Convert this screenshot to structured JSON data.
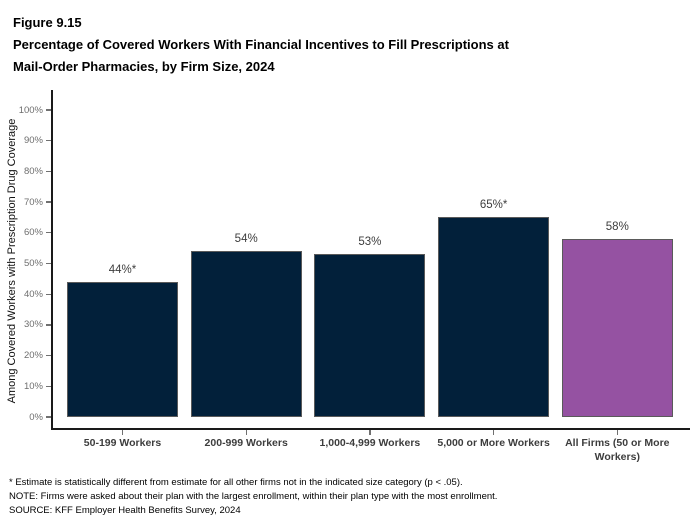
{
  "figure": {
    "label": "Figure 9.15",
    "title_lines": [
      "Percentage of Covered Workers With Financial Incentives to Fill Prescriptions at",
      "Mail-Order Pharmacies, by Firm Size, 2024"
    ]
  },
  "chart_data": {
    "type": "bar",
    "title": "Percentage of Covered Workers With Financial Incentives to Fill Prescriptions at Mail-Order Pharmacies, by Firm Size, 2024",
    "figure_label": "Figure 9.15",
    "categories": [
      "50-199 Workers",
      "200-999 Workers",
      "1,000-4,999 Workers",
      "5,000 or More Workers",
      "All Firms (50 or More Workers)"
    ],
    "values": [
      44,
      54,
      53,
      65,
      58
    ],
    "bar_labels": [
      "44%*",
      "54%",
      "53%",
      "65%*",
      "58%"
    ],
    "xlabel": "",
    "ylabel": "Among Covered Workers with Prescription Drug Coverage",
    "ylim": [
      0,
      100
    ],
    "ytick_step": 10,
    "ytick_labels": [
      "0%",
      "10%",
      "20%",
      "30%",
      "40%",
      "50%",
      "60%",
      "70%",
      "80%",
      "90%",
      "100%"
    ],
    "grid": false,
    "legend": "none",
    "bar_colors": [
      "#02203a",
      "#02203a",
      "#02203a",
      "#02203a",
      "#9552a2"
    ],
    "bar_border_color": "#5a5a5a"
  },
  "footnotes": [
    "* Estimate is statistically different from estimate for all other firms not in the indicated size category (p < .05).",
    "NOTE: Firms were asked about their plan with the largest enrollment, within their plan type with the most enrollment.",
    "SOURCE: KFF Employer Health Benefits Survey, 2024"
  ]
}
